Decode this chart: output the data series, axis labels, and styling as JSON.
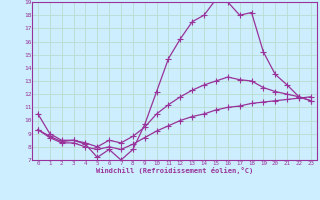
{
  "xlabel": "Windchill (Refroidissement éolien,°C)",
  "bg_color": "#cceeff",
  "grid_color": "#b8ddd0",
  "line_color": "#993399",
  "xlim": [
    -0.5,
    23.5
  ],
  "ylim": [
    7,
    19
  ],
  "xticks": [
    0,
    1,
    2,
    3,
    4,
    5,
    6,
    7,
    8,
    9,
    10,
    11,
    12,
    13,
    14,
    15,
    16,
    17,
    18,
    19,
    20,
    21,
    22,
    23
  ],
  "yticks": [
    7,
    8,
    9,
    10,
    11,
    12,
    13,
    14,
    15,
    16,
    17,
    18,
    19
  ],
  "line1_x": [
    0,
    1,
    2,
    3,
    4,
    5,
    6,
    7,
    8,
    9,
    10,
    11,
    12,
    13,
    14,
    15,
    16,
    17,
    18,
    19,
    20,
    21,
    22,
    23
  ],
  "line1_y": [
    10.5,
    9.0,
    8.5,
    8.5,
    8.2,
    7.2,
    7.8,
    7.0,
    7.8,
    9.7,
    12.2,
    14.7,
    16.2,
    17.5,
    18.0,
    19.2,
    19.0,
    18.0,
    18.2,
    15.2,
    13.5,
    12.7,
    11.8,
    11.5
  ],
  "line2_x": [
    0,
    1,
    2,
    3,
    4,
    5,
    6,
    7,
    8,
    9,
    10,
    11,
    12,
    13,
    14,
    15,
    16,
    17,
    18,
    19,
    20,
    21,
    22,
    23
  ],
  "line2_y": [
    9.3,
    8.8,
    8.4,
    8.5,
    8.3,
    8.0,
    8.5,
    8.3,
    8.8,
    9.5,
    10.5,
    11.2,
    11.8,
    12.3,
    12.7,
    13.0,
    13.3,
    13.1,
    13.0,
    12.5,
    12.2,
    12.0,
    11.8,
    11.5
  ],
  "line3_x": [
    0,
    1,
    2,
    3,
    4,
    5,
    6,
    7,
    8,
    9,
    10,
    11,
    12,
    13,
    14,
    15,
    16,
    17,
    18,
    19,
    20,
    21,
    22,
    23
  ],
  "line3_y": [
    9.3,
    8.7,
    8.3,
    8.3,
    8.0,
    7.8,
    8.0,
    7.8,
    8.2,
    8.7,
    9.2,
    9.6,
    10.0,
    10.3,
    10.5,
    10.8,
    11.0,
    11.1,
    11.3,
    11.4,
    11.5,
    11.6,
    11.7,
    11.8
  ]
}
